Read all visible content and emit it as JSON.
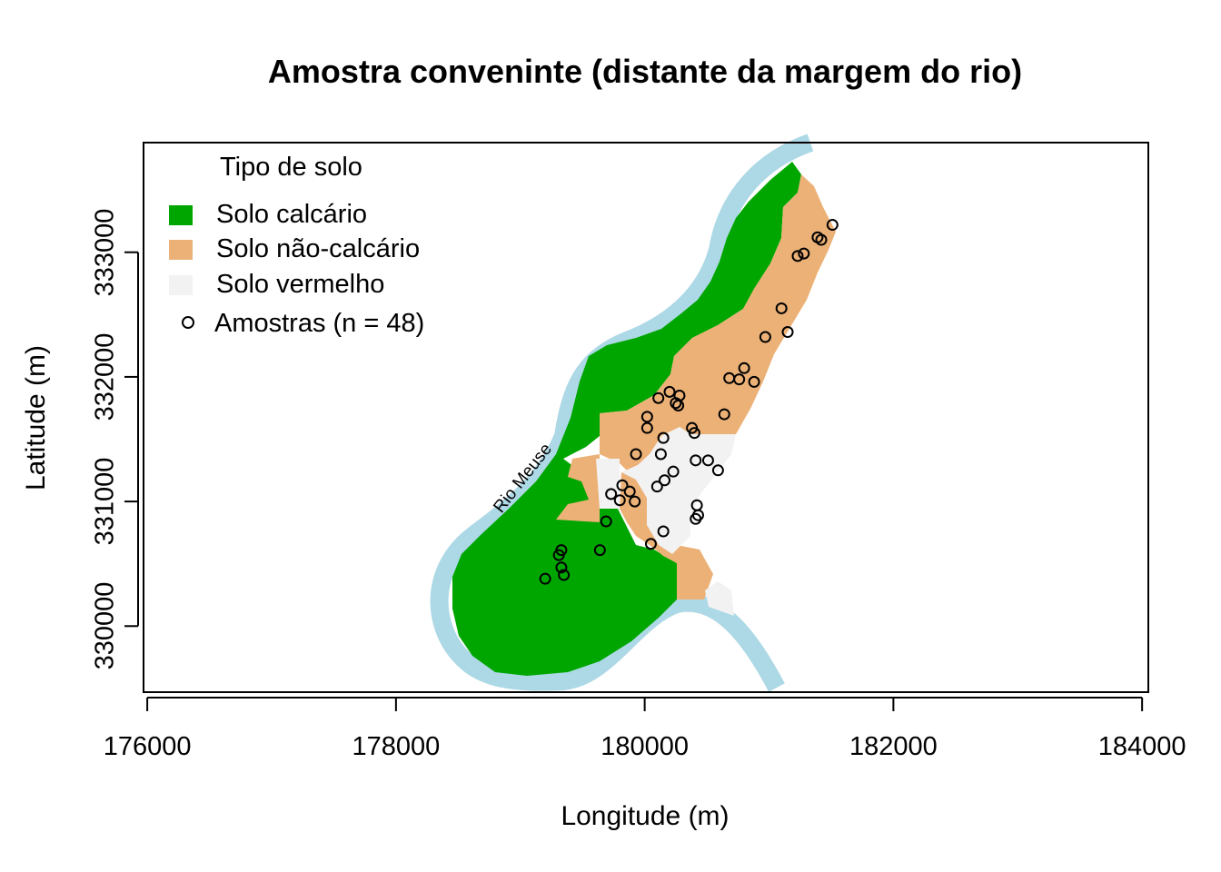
{
  "chart_data": {
    "type": "map",
    "title": "Amostra conveninte (distante da margem do rio)",
    "xlabel": "Longitude (m)",
    "ylabel": "Latitude (m)",
    "xlim": [
      175970,
      184050
    ],
    "ylim": [
      329470,
      333880
    ],
    "x_ticks": [
      176000,
      178000,
      180000,
      182000,
      184000
    ],
    "x_tick_labels": [
      "176000",
      "178000",
      "180000",
      "182000",
      "184000"
    ],
    "y_ticks": [
      330000,
      331000,
      332000,
      333000
    ],
    "y_tick_labels": [
      "330000",
      "331000",
      "332000",
      "333000"
    ],
    "river_label": "Rio Meuse",
    "colors": {
      "calcareous": "#00A600",
      "non_calcareous": "#ECB176",
      "red_soil": "#F2F2F2",
      "river": "#ADD8E6"
    },
    "legend": {
      "title": "Tipo de solo",
      "items": [
        {
          "label": "Solo calcário",
          "color": "#00A600",
          "kind": "square"
        },
        {
          "label": "Solo não-calcário",
          "color": "#ECB176",
          "kind": "square"
        },
        {
          "label": "Solo vermelho",
          "color": "#F2F2F2",
          "kind": "square"
        },
        {
          "label": "Amostras (n = 48)",
          "kind": "circle"
        }
      ],
      "placement": "top-left"
    },
    "points": [
      [
        181510,
        333220
      ],
      [
        181390,
        333120
      ],
      [
        181420,
        333100
      ],
      [
        181280,
        332990
      ],
      [
        181230,
        332970
      ],
      [
        181100,
        332550
      ],
      [
        181150,
        332360
      ],
      [
        180970,
        332320
      ],
      [
        180800,
        332070
      ],
      [
        180760,
        331980
      ],
      [
        180680,
        331990
      ],
      [
        180880,
        331960
      ],
      [
        180640,
        331700
      ],
      [
        180200,
        331880
      ],
      [
        180280,
        331850
      ],
      [
        180110,
        331830
      ],
      [
        180250,
        331790
      ],
      [
        180270,
        331770
      ],
      [
        180020,
        331680
      ],
      [
        180380,
        331590
      ],
      [
        180020,
        331590
      ],
      [
        180400,
        331550
      ],
      [
        180150,
        331510
      ],
      [
        179930,
        331380
      ],
      [
        180130,
        331380
      ],
      [
        180410,
        331330
      ],
      [
        180510,
        331330
      ],
      [
        180590,
        331250
      ],
      [
        180230,
        331240
      ],
      [
        180160,
        331170
      ],
      [
        179820,
        331130
      ],
      [
        179880,
        331080
      ],
      [
        180100,
        331120
      ],
      [
        179730,
        331060
      ],
      [
        179800,
        331010
      ],
      [
        179920,
        331000
      ],
      [
        180420,
        330970
      ],
      [
        180430,
        330890
      ],
      [
        180410,
        330860
      ],
      [
        179690,
        330840
      ],
      [
        180150,
        330760
      ],
      [
        180050,
        330660
      ],
      [
        179330,
        330610
      ],
      [
        179640,
        330610
      ],
      [
        179310,
        330570
      ],
      [
        179330,
        330470
      ],
      [
        179350,
        330410
      ],
      [
        179200,
        330380
      ]
    ]
  }
}
